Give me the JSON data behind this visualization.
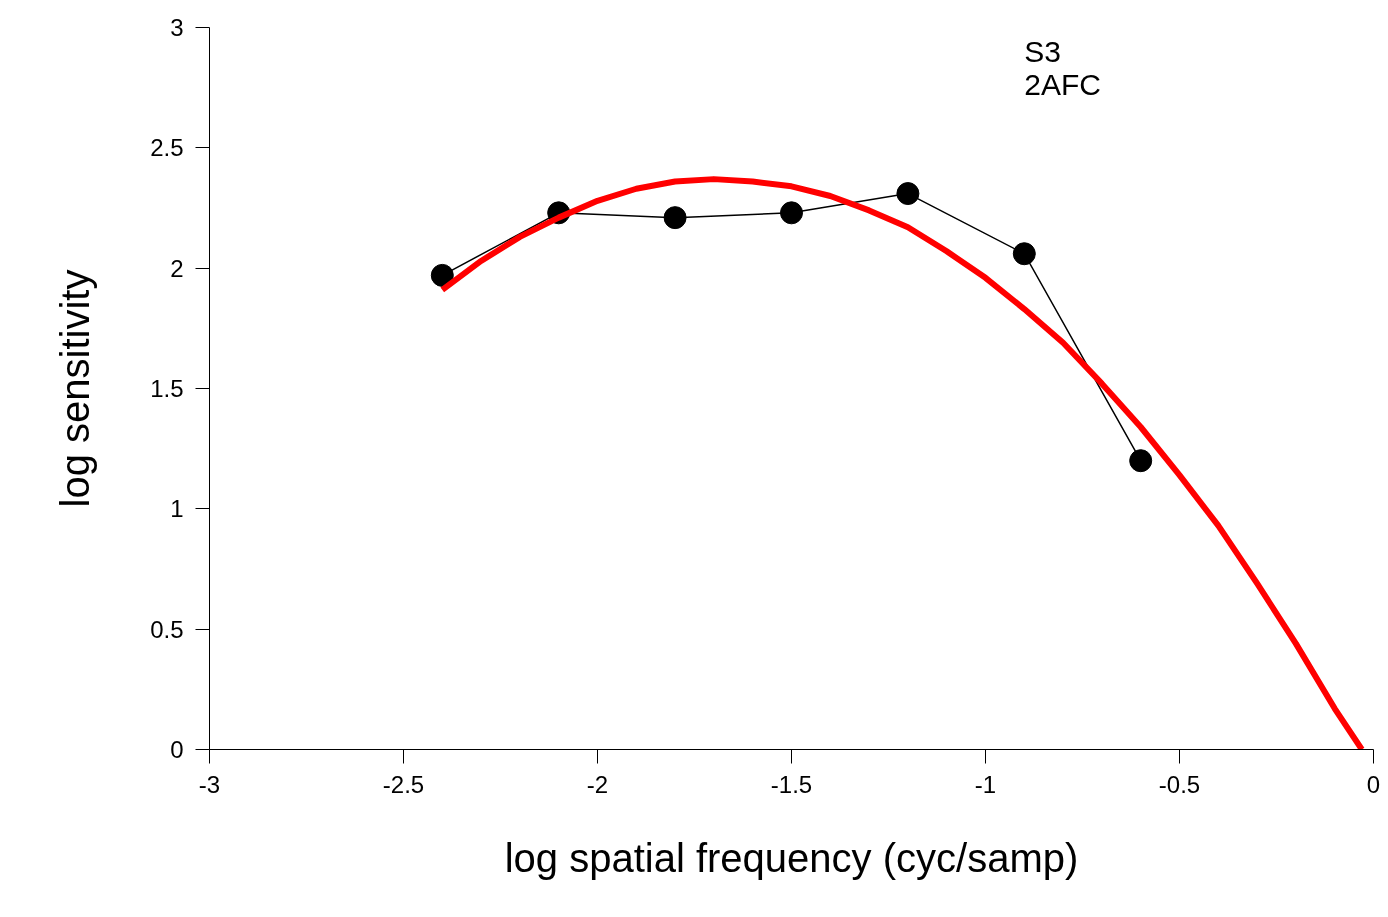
{
  "chart_data": {
    "type": "line",
    "xlabel": "log spatial frequency (cyc/samp)",
    "ylabel": "log sensitivity",
    "annotations": [
      "S3",
      "2AFC"
    ],
    "series": [
      {
        "color": "#000000",
        "marker": "circle",
        "x": [
          -2.4,
          -2.1,
          -1.8,
          -1.5,
          -1.2,
          -0.9,
          -0.6
        ],
        "values": [
          1.97,
          2.23,
          2.21,
          2.23,
          2.31,
          2.06,
          1.2
        ]
      },
      {
        "color": "#ff0000",
        "marker": "none",
        "x": [
          -2.4,
          -2.3,
          -2.2,
          -2.1,
          -2.0,
          -1.9,
          -1.8,
          -1.7,
          -1.6,
          -1.5,
          -1.4,
          -1.3,
          -1.2,
          -1.1,
          -1.0,
          -0.9,
          -0.8,
          -0.7,
          -0.6,
          -0.5,
          -0.4,
          -0.3,
          -0.2,
          -0.1,
          -0.03
        ],
        "values": [
          1.91,
          2.03,
          2.13,
          2.21,
          2.28,
          2.33,
          2.36,
          2.37,
          2.36,
          2.34,
          2.3,
          2.24,
          2.17,
          2.07,
          1.96,
          1.83,
          1.69,
          1.52,
          1.34,
          1.14,
          0.93,
          0.69,
          0.44,
          0.17,
          0
        ]
      }
    ],
    "xlim": [
      -3,
      0
    ],
    "ylim": [
      0,
      3
    ],
    "xticks": [
      -3,
      -2.5,
      -2,
      -1.5,
      -1,
      -0.5,
      0
    ],
    "yticks": [
      0,
      0.5,
      1,
      1.5,
      2,
      2.5,
      3
    ],
    "grid": false
  }
}
